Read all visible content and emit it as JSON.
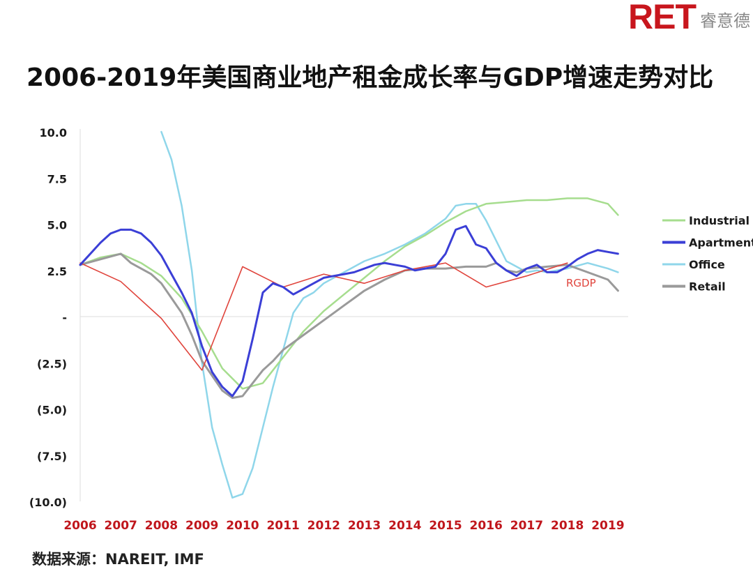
{
  "logo": {
    "brand": "RET",
    "cn": "睿意德"
  },
  "title": "2006-2019年美国商业地产租金成长率与GDP增速走势对比",
  "source": "数据来源：NAREIT, IMF",
  "colors": {
    "Industrial": "#a6dd8e",
    "Apartment": "#3b3fd6",
    "Office": "#8fd6ea",
    "Retail": "#9a9a9a",
    "RGDP": "#e0443c",
    "x_tick": "#c0161c",
    "axis": "#dddddd"
  },
  "chart_data": {
    "type": "line",
    "title": "2006-2019年美国商业地产租金成长率与GDP增速走势对比",
    "xlabel": "",
    "ylabel": "",
    "xlim": [
      2006,
      2019.5
    ],
    "ylim": [
      -10,
      10
    ],
    "x_ticks": [
      "2006",
      "2007",
      "2008",
      "2009",
      "2010",
      "2011",
      "2012",
      "2013",
      "2014",
      "2015",
      "2016",
      "2017",
      "2018",
      "2019"
    ],
    "y_ticks": [
      "10.0",
      "7.5",
      "5.0",
      "2.5",
      "-",
      "(2.5)",
      "(5.0)",
      "(7.5)",
      "(10.0)"
    ],
    "legend_position": "right",
    "series": [
      {
        "name": "Industrial",
        "x": [
          2006,
          2006.5,
          2007,
          2007.5,
          2008,
          2008.5,
          2009,
          2009.5,
          2010,
          2010.5,
          2011,
          2011.5,
          2012,
          2012.5,
          2013,
          2013.5,
          2014,
          2014.5,
          2015,
          2015.5,
          2016,
          2016.5,
          2017,
          2017.5,
          2018,
          2018.5,
          2019,
          2019.25
        ],
        "y": [
          2.8,
          3.2,
          3.4,
          2.9,
          2.2,
          1.0,
          -0.8,
          -2.8,
          -3.9,
          -3.6,
          -2.2,
          -0.8,
          0.3,
          1.2,
          2.1,
          3.0,
          3.8,
          4.4,
          5.1,
          5.7,
          6.1,
          6.2,
          6.3,
          6.3,
          6.4,
          6.4,
          6.1,
          5.5
        ]
      },
      {
        "name": "Apartment",
        "x": [
          2006,
          2006.25,
          2006.5,
          2006.75,
          2007,
          2007.25,
          2007.5,
          2007.75,
          2008,
          2008.25,
          2008.5,
          2008.75,
          2009,
          2009.25,
          2009.5,
          2009.75,
          2010,
          2010.25,
          2010.5,
          2010.75,
          2011,
          2011.25,
          2011.5,
          2011.75,
          2012,
          2012.25,
          2012.5,
          2012.75,
          2013,
          2013.25,
          2013.5,
          2013.75,
          2014,
          2014.25,
          2014.5,
          2014.75,
          2015,
          2015.25,
          2015.5,
          2015.75,
          2016,
          2016.25,
          2016.5,
          2016.75,
          2017,
          2017.25,
          2017.5,
          2017.75,
          2018,
          2018.25,
          2018.5,
          2018.75,
          2019,
          2019.25
        ],
        "y": [
          2.8,
          3.4,
          4.0,
          4.5,
          4.7,
          4.7,
          4.5,
          4.0,
          3.3,
          2.3,
          1.3,
          0.2,
          -1.6,
          -3.0,
          -3.8,
          -4.3,
          -3.5,
          -1.2,
          1.3,
          1.8,
          1.6,
          1.2,
          1.5,
          1.8,
          2.1,
          2.2,
          2.3,
          2.4,
          2.6,
          2.8,
          2.9,
          2.8,
          2.7,
          2.5,
          2.6,
          2.7,
          3.4,
          4.7,
          4.9,
          3.9,
          3.7,
          2.9,
          2.5,
          2.2,
          2.6,
          2.8,
          2.4,
          2.4,
          2.7,
          3.1,
          3.4,
          3.6,
          3.5,
          3.4
        ]
      },
      {
        "name": "Office",
        "x": [
          2008,
          2008.25,
          2008.5,
          2008.75,
          2009,
          2009.25,
          2009.5,
          2009.75,
          2010,
          2010.25,
          2010.5,
          2010.75,
          2011,
          2011.25,
          2011.5,
          2011.75,
          2012,
          2012.5,
          2013,
          2013.5,
          2014,
          2014.5,
          2015,
          2015.25,
          2015.5,
          2015.75,
          2016,
          2016.25,
          2016.5,
          2016.75,
          2017,
          2017.25,
          2017.5,
          2018,
          2018.5,
          2019,
          2019.25
        ],
        "y": [
          10.0,
          8.5,
          6.0,
          2.5,
          -2.5,
          -6.0,
          -8.0,
          -9.8,
          -9.6,
          -8.2,
          -6.0,
          -3.8,
          -1.8,
          0.2,
          1.0,
          1.3,
          1.8,
          2.4,
          3.0,
          3.4,
          3.9,
          4.5,
          5.3,
          6.0,
          6.1,
          6.1,
          5.2,
          4.1,
          3.0,
          2.7,
          2.4,
          2.5,
          2.4,
          2.6,
          2.9,
          2.6,
          2.4
        ]
      },
      {
        "name": "Retail",
        "x": [
          2006,
          2006.5,
          2007,
          2007.25,
          2007.5,
          2007.75,
          2008,
          2008.25,
          2008.5,
          2008.75,
          2009,
          2009.25,
          2009.5,
          2009.75,
          2010,
          2010.25,
          2010.5,
          2010.75,
          2011,
          2011.25,
          2011.5,
          2011.75,
          2012,
          2012.25,
          2012.5,
          2012.75,
          2013,
          2013.5,
          2014,
          2014.5,
          2015,
          2015.5,
          2016,
          2016.25,
          2016.5,
          2016.75,
          2017,
          2017.5,
          2018,
          2018.5,
          2019,
          2019.25
        ],
        "y": [
          2.8,
          3.1,
          3.4,
          2.9,
          2.6,
          2.3,
          1.8,
          1.0,
          0.2,
          -1.0,
          -2.4,
          -3.2,
          -4.0,
          -4.4,
          -4.3,
          -3.6,
          -2.9,
          -2.4,
          -1.8,
          -1.4,
          -1.0,
          -0.6,
          -0.2,
          0.2,
          0.6,
          1.0,
          1.4,
          2.0,
          2.5,
          2.6,
          2.6,
          2.7,
          2.7,
          2.9,
          2.5,
          2.4,
          2.6,
          2.7,
          2.8,
          2.4,
          2.0,
          1.4
        ]
      },
      {
        "name": "RGDP",
        "x": [
          2006,
          2007,
          2008,
          2009,
          2010,
          2011,
          2012,
          2013,
          2014,
          2015,
          2016,
          2017,
          2018
        ],
        "y": [
          2.9,
          1.9,
          -0.1,
          -2.9,
          2.7,
          1.6,
          2.3,
          1.8,
          2.5,
          2.9,
          1.6,
          2.2,
          2.9
        ]
      }
    ],
    "annotations": [
      {
        "text": "RGDP"
      }
    ]
  }
}
